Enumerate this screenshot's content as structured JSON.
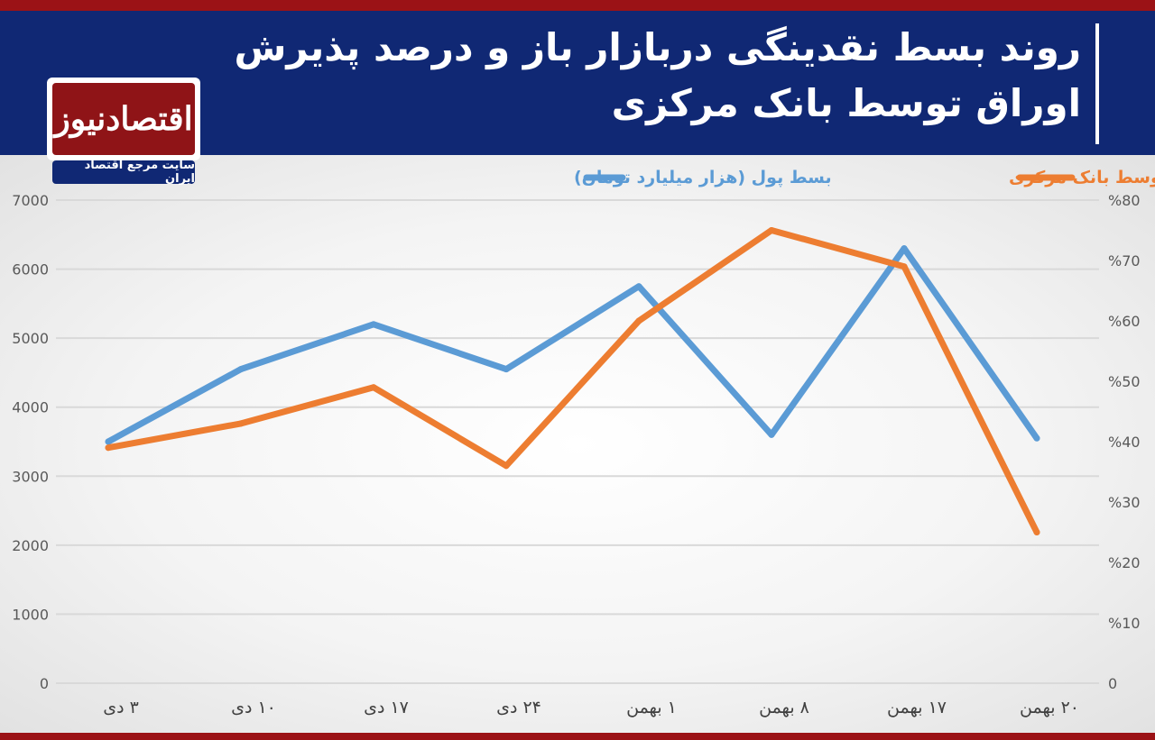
{
  "header": {
    "title": "روند بسط نقدینگی دربازار باز و درصد پذیرش اوراق توسط بانک مرکزی",
    "logo_text": "اقتصادنیوز",
    "logo_tagline": "سایت مرجع اقتصاد ایران"
  },
  "colors": {
    "header_bg": "#102874",
    "accent_red": "#9b1216",
    "series_blue": "#5b9bd5",
    "series_orange": "#ed7d31",
    "gridline": "#d9d9d9"
  },
  "chart_data": {
    "type": "line",
    "title": "روند بسط نقدینگی دربازار باز و درصد پذیرش اوراق توسط بانک مرکزی",
    "categories": [
      "۳ دی",
      "۱۰ دی",
      "۱۷ دی",
      "۲۴ دی",
      "۱ بهمن",
      "۸ بهمن",
      "۱۷ بهمن",
      "۲۰ بهمن"
    ],
    "y_left": {
      "range": [
        0,
        7000
      ],
      "ticks": [
        0,
        1000,
        2000,
        3000,
        4000,
        5000,
        6000,
        7000
      ],
      "tick_labels": [
        "0",
        "1000",
        "2000",
        "3000",
        "4000",
        "5000",
        "6000",
        "7000"
      ]
    },
    "y_right": {
      "range": [
        0,
        80
      ],
      "ticks": [
        0,
        10,
        20,
        30,
        40,
        50,
        60,
        70,
        80
      ],
      "tick_labels": [
        "0",
        "%10",
        "%20",
        "%30",
        "%40",
        "%50",
        "%60",
        "%70",
        "%80"
      ]
    },
    "series": [
      {
        "name": "بسط پول (هزار میلیارد تومان)",
        "axis": "left",
        "color": "#5b9bd5",
        "values": [
          3500,
          4550,
          5200,
          4550,
          5750,
          3600,
          6300,
          3550
        ]
      },
      {
        "name": "درصد پذیرش اوراق توسط بانک مرکزی",
        "axis": "right",
        "color": "#ed7d31",
        "values": [
          39,
          43,
          49,
          36,
          60,
          75,
          69,
          25
        ]
      }
    ],
    "grid": true,
    "legend_position": "top"
  }
}
